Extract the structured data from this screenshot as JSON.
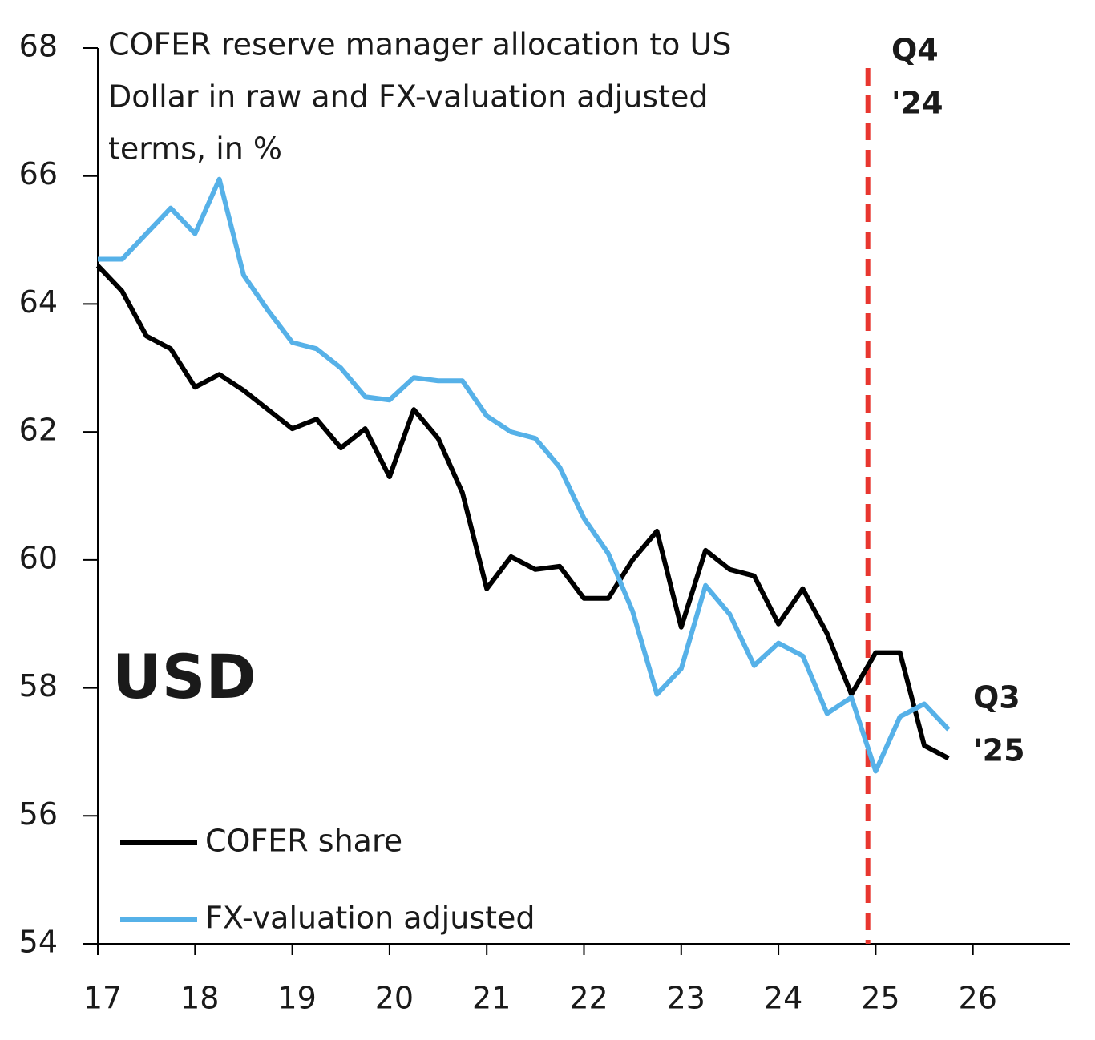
{
  "chart_data": {
    "type": "line",
    "title": [
      "COFER reserve manager allocation to US",
      "Dollar in raw and FX-valuation adjusted",
      "terms, in %"
    ],
    "x": [
      17,
      17.25,
      17.5,
      17.75,
      18,
      18.25,
      18.5,
      18.75,
      19,
      19.25,
      19.5,
      19.75,
      20,
      20.25,
      20.5,
      20.75,
      21,
      21.25,
      21.5,
      21.75,
      22,
      22.25,
      22.5,
      22.75,
      23,
      23.25,
      23.5,
      23.75,
      24,
      24.25,
      24.5,
      24.75,
      25,
      25.25,
      25.5,
      25.75
    ],
    "series": [
      {
        "name": "COFER share",
        "color": "#000000",
        "values": [
          64.6,
          64.2,
          63.5,
          63.3,
          62.7,
          62.9,
          62.65,
          62.35,
          62.05,
          62.2,
          61.75,
          62.05,
          61.3,
          62.35,
          61.9,
          61.05,
          59.55,
          60.05,
          59.85,
          59.9,
          59.4,
          59.4,
          60.0,
          60.45,
          58.95,
          60.15,
          59.85,
          59.75,
          59.0,
          59.55,
          58.85,
          57.9,
          58.55,
          58.55,
          57.1,
          56.9
        ]
      },
      {
        "name": "FX-valuation adjusted",
        "color": "#56b1e8",
        "values": [
          64.7,
          64.7,
          65.1,
          65.5,
          65.1,
          65.95,
          64.45,
          63.9,
          63.4,
          63.3,
          63.0,
          62.55,
          62.5,
          62.85,
          62.8,
          62.8,
          62.25,
          62.0,
          61.9,
          61.45,
          60.65,
          60.1,
          59.2,
          57.9,
          58.3,
          59.6,
          59.15,
          58.35,
          58.7,
          58.5,
          57.6,
          57.85,
          56.7,
          57.55,
          57.75,
          57.35
        ]
      }
    ],
    "xlim": [
      17,
      27
    ],
    "xticks": [
      17,
      18,
      19,
      20,
      21,
      22,
      23,
      24,
      25,
      26
    ],
    "ylim": [
      54,
      68
    ],
    "yticks": [
      54,
      56,
      58,
      60,
      62,
      64,
      66,
      68
    ],
    "grid": false,
    "legend": "lower left",
    "annotations": [
      {
        "text": [
          "Q4",
          "'24"
        ],
        "color": "#e8362f",
        "x": 24.92
      },
      {
        "text": [
          "Q3",
          "'25"
        ],
        "color": "#56b1e8"
      },
      {
        "text": "USD"
      }
    ]
  }
}
